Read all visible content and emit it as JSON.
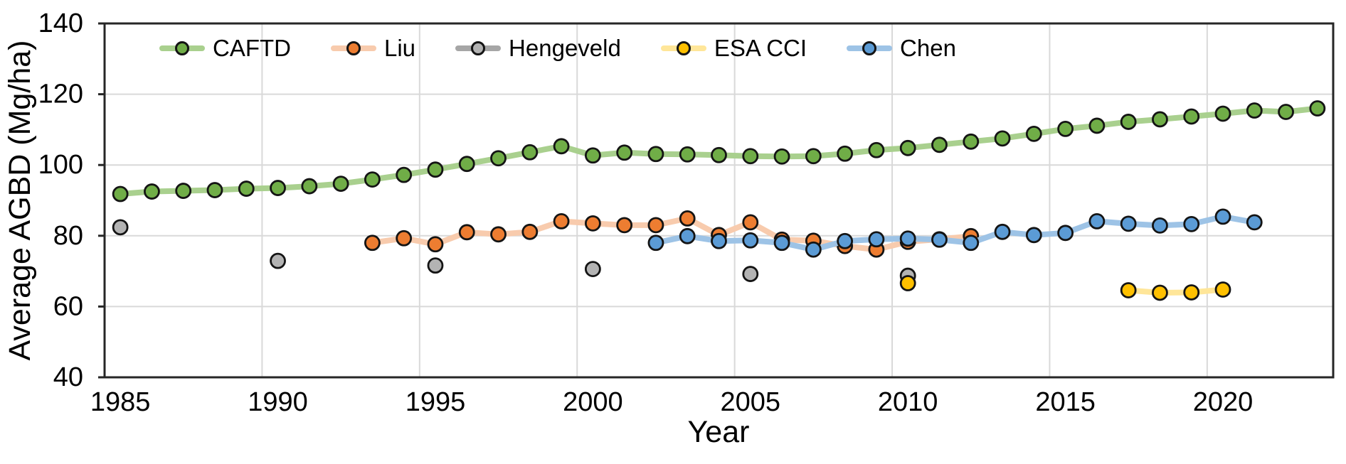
{
  "chart_data": {
    "type": "line",
    "title": "",
    "xlabel": "Year",
    "ylabel": "Average AGBD (Mg/ha)",
    "x_start": 1985,
    "x_end": 2023,
    "x_tick_years": [
      1985,
      1990,
      1995,
      2000,
      2005,
      2010,
      2015,
      2020
    ],
    "ylim": [
      40,
      140
    ],
    "y_ticks": [
      40,
      60,
      80,
      100,
      120,
      140
    ],
    "grid": true,
    "legend_position": "top-center-inside",
    "colors": {
      "axis": "#262626",
      "gridline": "#d9d9d9",
      "marker_outline": "#141414",
      "text": "#000000"
    },
    "series": [
      {
        "name": "CAFTD",
        "marker_color": "#70AD47",
        "line_color": "#A9D08E",
        "points": [
          [
            1985,
            91.8
          ],
          [
            1986,
            92.5
          ],
          [
            1987,
            92.7
          ],
          [
            1988,
            92.9
          ],
          [
            1989,
            93.3
          ],
          [
            1990,
            93.5
          ],
          [
            1991,
            94.0
          ],
          [
            1992,
            94.7
          ],
          [
            1993,
            95.9
          ],
          [
            1994,
            97.2
          ],
          [
            1995,
            98.7
          ],
          [
            1996,
            100.3
          ],
          [
            1997,
            101.9
          ],
          [
            1998,
            103.6
          ],
          [
            1999,
            105.3
          ],
          [
            2000,
            102.7
          ],
          [
            2001,
            103.5
          ],
          [
            2002,
            103.1
          ],
          [
            2003,
            103.0
          ],
          [
            2004,
            102.8
          ],
          [
            2005,
            102.5
          ],
          [
            2006,
            102.4
          ],
          [
            2007,
            102.5
          ],
          [
            2008,
            103.2
          ],
          [
            2009,
            104.2
          ],
          [
            2010,
            104.8
          ],
          [
            2011,
            105.7
          ],
          [
            2012,
            106.6
          ],
          [
            2013,
            107.5
          ],
          [
            2014,
            108.8
          ],
          [
            2015,
            110.2
          ],
          [
            2016,
            111.1
          ],
          [
            2017,
            112.2
          ],
          [
            2018,
            112.9
          ],
          [
            2019,
            113.7
          ],
          [
            2020,
            114.5
          ],
          [
            2021,
            115.4
          ],
          [
            2022,
            115.0
          ],
          [
            2023,
            116.0
          ]
        ]
      },
      {
        "name": "Liu",
        "marker_color": "#ED7D31",
        "line_color": "#F8CBAD",
        "points": [
          [
            1993,
            78.0
          ],
          [
            1994,
            79.3
          ],
          [
            1995,
            77.6
          ],
          [
            1996,
            81.0
          ],
          [
            1997,
            80.4
          ],
          [
            1998,
            81.1
          ],
          [
            1999,
            84.1
          ],
          [
            2000,
            83.5
          ],
          [
            2001,
            83.0
          ],
          [
            2002,
            83.0
          ],
          [
            2003,
            84.9
          ],
          [
            2004,
            80.2
          ],
          [
            2005,
            83.8
          ],
          [
            2006,
            78.9
          ],
          [
            2007,
            78.6
          ],
          [
            2008,
            77.1
          ],
          [
            2009,
            76.1
          ],
          [
            2010,
            78.3
          ],
          [
            2011,
            79.0
          ],
          [
            2012,
            79.9
          ]
        ]
      },
      {
        "name": "Hengeveld",
        "marker_color": "#B3B3B3",
        "line_color": "#A6A6A6",
        "points": [
          [
            1985,
            82.4
          ],
          [
            1990,
            72.9
          ],
          [
            1995,
            71.6
          ],
          [
            2000,
            70.6
          ],
          [
            2005,
            69.2
          ],
          [
            2010,
            68.7
          ]
        ]
      },
      {
        "name": "ESA CCI",
        "marker_color": "#FFC000",
        "line_color": "#FFE699",
        "points": [
          [
            2010,
            66.6
          ],
          [
            2017,
            64.6
          ],
          [
            2018,
            63.9
          ],
          [
            2019,
            64.0
          ],
          [
            2020,
            64.8
          ]
        ]
      },
      {
        "name": "Chen",
        "marker_color": "#5B9BD5",
        "line_color": "#9DC3E6",
        "points": [
          [
            2002,
            78.0
          ],
          [
            2003,
            79.9
          ],
          [
            2004,
            78.5
          ],
          [
            2005,
            78.7
          ],
          [
            2006,
            78.0
          ],
          [
            2007,
            76.1
          ],
          [
            2008,
            78.5
          ],
          [
            2009,
            79.0
          ],
          [
            2010,
            79.2
          ],
          [
            2011,
            78.9
          ],
          [
            2012,
            78.0
          ],
          [
            2013,
            81.1
          ],
          [
            2014,
            80.2
          ],
          [
            2015,
            80.8
          ],
          [
            2016,
            84.1
          ],
          [
            2017,
            83.4
          ],
          [
            2018,
            82.9
          ],
          [
            2019,
            83.3
          ],
          [
            2020,
            85.4
          ],
          [
            2021,
            83.8
          ]
        ]
      }
    ]
  }
}
